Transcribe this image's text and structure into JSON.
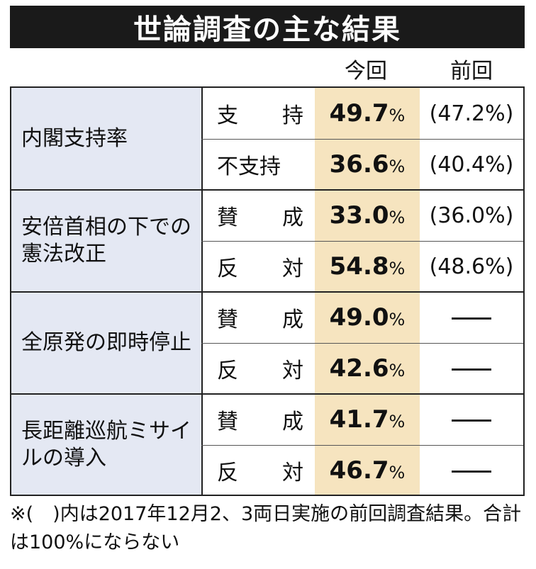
{
  "title": "世論調査の主な結果",
  "columns": {
    "current": "今回",
    "previous": "前回"
  },
  "chart_data": {
    "type": "table",
    "groups": [
      {
        "category": "内閣支持率",
        "rows": [
          {
            "answer": "支　持",
            "current": "49.7",
            "previous": "(47.2%)"
          },
          {
            "answer": "不支持",
            "current": "36.6",
            "previous": "(40.4%)"
          }
        ]
      },
      {
        "category": "安倍首相の下での憲法改正",
        "rows": [
          {
            "answer": "賛　成",
            "current": "33.0",
            "previous": "(36.0%)"
          },
          {
            "answer": "反　対",
            "current": "54.8",
            "previous": "(48.6%)"
          }
        ]
      },
      {
        "category": "全原発の即時停止",
        "rows": [
          {
            "answer": "賛　成",
            "current": "49.0",
            "previous": ""
          },
          {
            "answer": "反　対",
            "current": "42.6",
            "previous": ""
          }
        ]
      },
      {
        "category": "長距離巡航ミサイルの導入",
        "rows": [
          {
            "answer": "賛　成",
            "current": "41.7",
            "previous": ""
          },
          {
            "answer": "反　対",
            "current": "46.7",
            "previous": ""
          }
        ]
      }
    ],
    "unit": "%"
  },
  "footnote": "※(　)内は2017年12月2、3両日実施の前回調査結果。合計は100%にならない",
  "colors": {
    "category_bg": "#e4e8f3",
    "current_bg": "#f6e4bf",
    "title_bg": "#1a1a1a"
  }
}
